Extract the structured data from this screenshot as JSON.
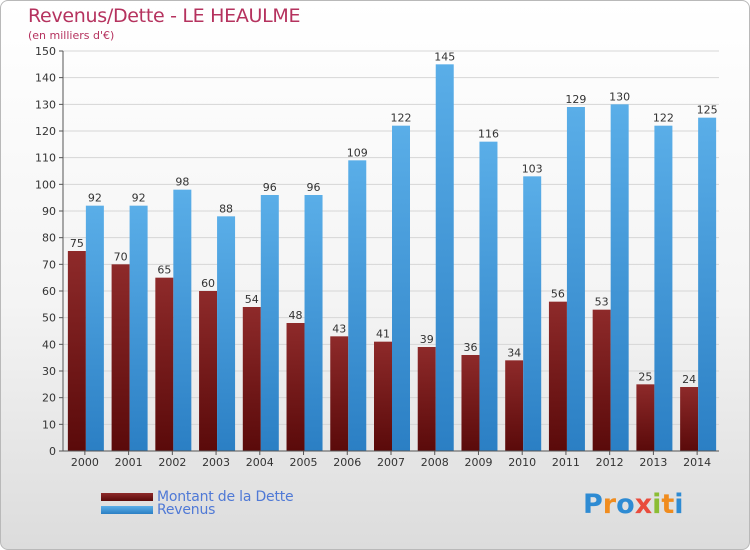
{
  "title": "Revenus/Dette - LE HEAULME",
  "subtitle": "(en milliers d'€)",
  "logo": {
    "letters": [
      "P",
      "r",
      "o",
      "x",
      "i",
      "t",
      "i"
    ],
    "colors": [
      "#2e8bd3",
      "#f08c1e",
      "#2e8bd3",
      "#e94c3d",
      "#8bbd34",
      "#f08c1e",
      "#2e8bd3"
    ]
  },
  "colors": {
    "debt": "#7a1c1c",
    "revenue": "#3e96dc",
    "axis": "#555555",
    "grid": "#d6d6d6"
  },
  "legend": [
    {
      "label": "Montant de la Dette",
      "color_key": "debt"
    },
    {
      "label": "Revenus",
      "color_key": "revenue"
    }
  ],
  "chart_data": {
    "type": "bar",
    "categories": [
      "2000",
      "2001",
      "2002",
      "2003",
      "2004",
      "2005",
      "2006",
      "2007",
      "2008",
      "2009",
      "2010",
      "2011",
      "2012",
      "2013",
      "2014"
    ],
    "series": [
      {
        "name": "Montant de la Dette",
        "values": [
          75,
          70,
          65,
          60,
          54,
          48,
          43,
          41,
          39,
          36,
          34,
          56,
          53,
          25,
          24
        ]
      },
      {
        "name": "Revenus",
        "values": [
          92,
          92,
          98,
          88,
          96,
          96,
          109,
          122,
          145,
          116,
          103,
          129,
          130,
          122,
          125
        ]
      }
    ],
    "ylim": [
      0,
      150
    ],
    "yticks": [
      0,
      10,
      20,
      30,
      40,
      50,
      60,
      70,
      80,
      90,
      100,
      110,
      120,
      130,
      140,
      150
    ],
    "grid": true,
    "legend_position": "bottom-left"
  }
}
